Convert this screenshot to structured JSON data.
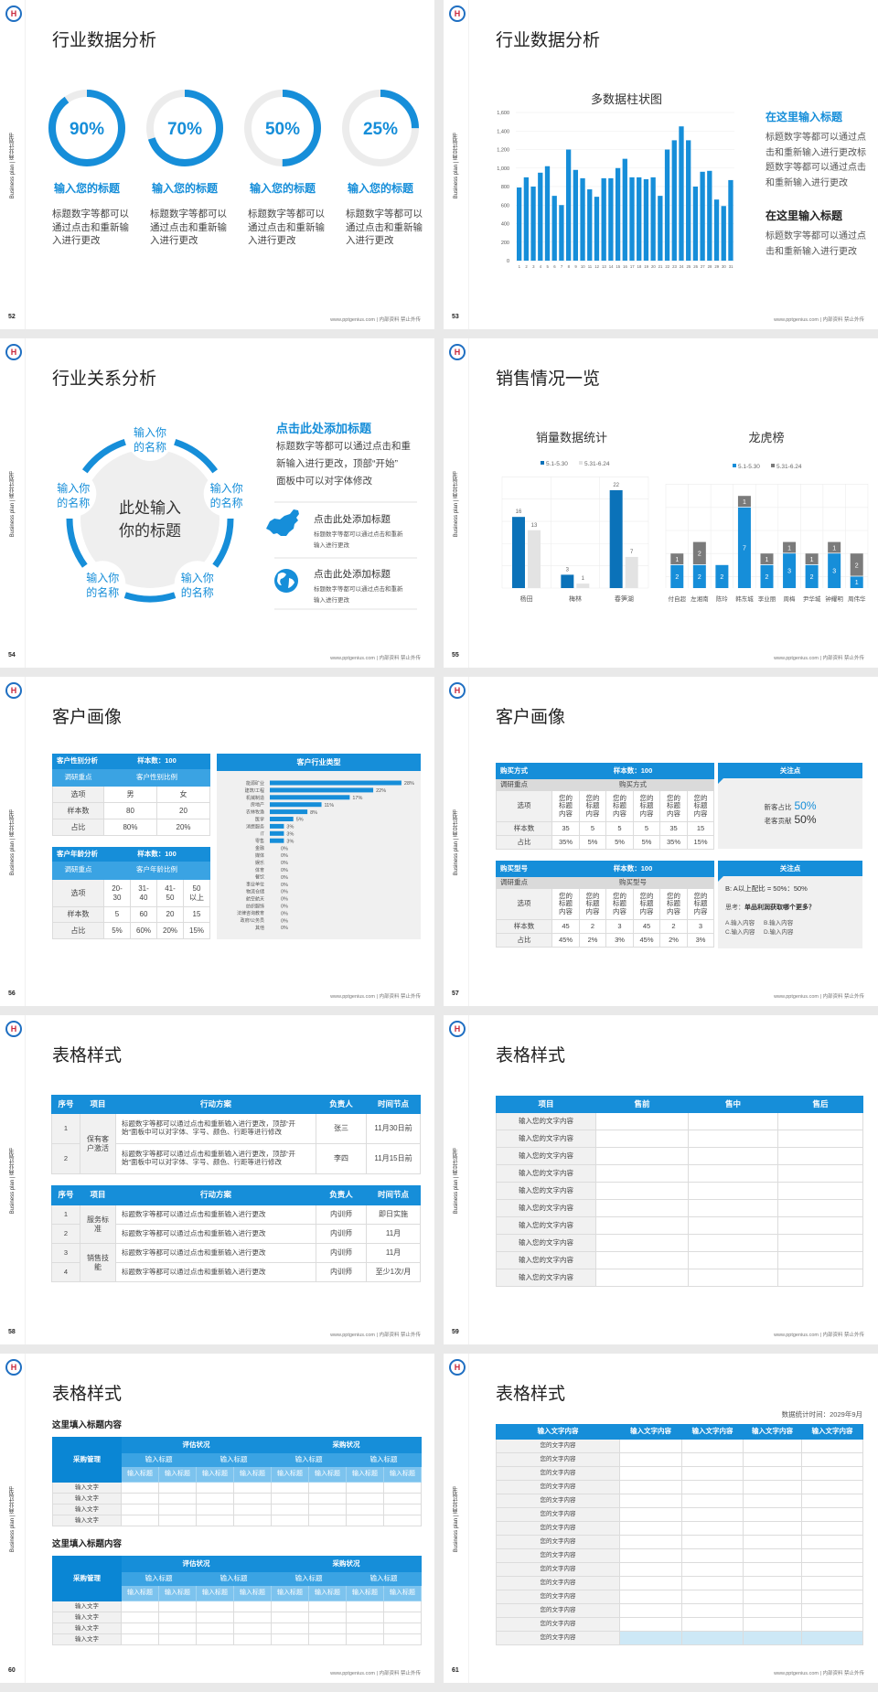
{
  "common": {
    "side_text": "Business plan | 商业计划书",
    "footer": "www.pptgenius.com | 内部资料 禁止外传",
    "logo_letter": "H",
    "colors": {
      "primary": "#168ed9",
      "dark_blue": "#0b72b9",
      "gray_bar": "#7b7b7b",
      "light_gray": "#e3e3e3",
      "highlight": "#cde8f6"
    }
  },
  "slides": [
    {
      "page": "52",
      "title": "行业数据分析",
      "rings": [
        {
          "value": 90,
          "label": "90%",
          "heading": "输入您的标题",
          "desc": [
            "标题数字等都可以",
            "通过点击和重新输",
            "入进行更改"
          ]
        },
        {
          "value": 70,
          "label": "70%",
          "heading": "输入您的标题",
          "desc": [
            "标题数字等都可以",
            "通过点击和重新输",
            "入进行更改"
          ]
        },
        {
          "value": 50,
          "label": "50%",
          "heading": "输入您的标题",
          "desc": [
            "标题数字等都可以",
            "通过点击和重新输",
            "入进行更改"
          ]
        },
        {
          "value": 25,
          "label": "25%",
          "heading": "输入您的标题",
          "desc": [
            "标题数字等都可以",
            "通过点击和重新输",
            "入进行更改"
          ]
        }
      ]
    },
    {
      "page": "53",
      "title": "行业数据分析",
      "blocks": [
        {
          "heading": "在这里输入标题",
          "lines": [
            "标题数字等都可以通过点",
            "击和重新输入进行更改标",
            "题数字等都可以通过点击",
            "和重新输入进行更改"
          ]
        },
        {
          "heading": "在这里输入标题",
          "lines": [
            "标题数字等都可以通过点",
            "击和重新输入进行更改"
          ]
        }
      ]
    },
    {
      "page": "54",
      "title": "行业关系分析",
      "center": [
        "此处输入",
        "你的标题"
      ],
      "nodes": [
        {
          "lines": [
            "输入你",
            "的名称"
          ]
        },
        {
          "lines": [
            "输入你",
            "的名称"
          ]
        },
        {
          "lines": [
            "输入你",
            "的名称"
          ]
        },
        {
          "lines": [
            "输入你",
            "的名称"
          ]
        },
        {
          "lines": [
            "输入你",
            "的名称"
          ]
        }
      ],
      "heading": "点击此处添加标题",
      "lines": [
        "标题数字等都可以通过点击和重",
        "新输入进行更改，顶部“开始”",
        "面板中可以对字体修改"
      ],
      "items": [
        {
          "icon": "china-map-icon",
          "title": "点击此处添加标题",
          "lines": [
            "标题数字等都可以通过点击和重新",
            "输入进行更改"
          ]
        },
        {
          "icon": "globe-icon",
          "title": "点击此处添加标题",
          "lines": [
            "标题数字等都可以通过点击和重新",
            "输入进行更改"
          ]
        }
      ]
    },
    {
      "page": "55",
      "title": "销售情况一览"
    },
    {
      "page": "56",
      "title": "客户画像",
      "t1": {
        "title": "客户性别分析",
        "sample": "样本数：100",
        "focus_label": "调研重点",
        "focus": "客户性别比例",
        "rows": [
          [
            "选项",
            "男",
            "女"
          ],
          [
            "样本数",
            "80",
            "20"
          ],
          [
            "占比",
            "80%",
            "20%"
          ]
        ]
      },
      "t2": {
        "title": "客户年龄分析",
        "sample": "样本数：100",
        "focus_label": "调研重点",
        "focus": "客户年龄比例",
        "rows": [
          [
            "选项",
            "20-30",
            "31-40",
            "41-50",
            "50以上"
          ],
          [
            "样本数",
            "5",
            "60",
            "20",
            "15"
          ],
          [
            "占比",
            "5%",
            "60%",
            "20%",
            "15%"
          ]
        ]
      }
    },
    {
      "page": "57",
      "title": "客户画像",
      "t1": {
        "title": "购买方式",
        "sample": "样本数：100",
        "focus_label": "调研重点",
        "focus": "购买方式",
        "rows": [
          [
            "选项",
            "您的标题内容",
            "您的标题内容",
            "您的标题内容",
            "您的标题内容",
            "您的标题内容",
            "您的标题内容"
          ],
          [
            "样本数",
            "35",
            "5",
            "5",
            "5",
            "35",
            "15"
          ],
          [
            "占比",
            "35%",
            "5%",
            "5%",
            "5%",
            "35%",
            "15%"
          ]
        ]
      },
      "p1": {
        "title": "关注点",
        "lines": [
          {
            "label": "新客占比",
            "value": "50%"
          },
          {
            "label": "老客贡献",
            "value": "50%"
          }
        ]
      },
      "t2": {
        "title": "购买型号",
        "sample": "样本数：100",
        "focus_label": "调研重点",
        "focus": "购买型号",
        "rows": [
          [
            "选项",
            "您的标题内容",
            "您的标题内容",
            "您的标题内容",
            "您的标题内容",
            "您的标题内容",
            "您的标题内容"
          ],
          [
            "样本数",
            "45",
            "2",
            "3",
            "45",
            "2",
            "3"
          ],
          [
            "占比",
            "45%",
            "2%",
            "3%",
            "45%",
            "2%",
            "3%"
          ]
        ]
      },
      "p2": {
        "title": "关注点",
        "ratio": "B: A以上配比 = 50%：50%",
        "think_label": "思考：",
        "think": "单品利润获取哪个更多？",
        "options": [
          "A.输入内容",
          "B.输入内容",
          "C.输入内容",
          "D.输入内容"
        ]
      }
    },
    {
      "page": "58",
      "title": "表格样式",
      "t1": {
        "headers": [
          "序号",
          "项目",
          "行动方案",
          "负责人",
          "时间节点"
        ],
        "groups": [
          {
            "project": "保有客户激活",
            "rows": [
              [
                "1",
                "标题数字等都可以通过点击和重新输入进行更改，顶部“开始”面板中可以对字体、字号、颜色、行距等进行修改",
                "张三",
                "11月30日前"
              ],
              [
                "2",
                "标题数字等都可以通过点击和重新输入进行更改，顶部“开始”面板中可以对字体、字号、颜色、行距等进行修改",
                "李四",
                "11月15日前"
              ]
            ]
          }
        ]
      },
      "t2": {
        "headers": [
          "序号",
          "项目",
          "行动方案",
          "负责人",
          "时间节点"
        ],
        "groups": [
          {
            "project": "服务标准",
            "rows": [
              [
                "1",
                "标题数字等都可以通过点击和重新输入进行更改",
                "内训师",
                "即日实施"
              ],
              [
                "2",
                "标题数字等都可以通过点击和重新输入进行更改",
                "内训师",
                "11月"
              ]
            ]
          },
          {
            "project": "销售技能",
            "rows": [
              [
                "3",
                "标题数字等都可以通过点击和重新输入进行更改",
                "内训师",
                "11月"
              ],
              [
                "4",
                "标题数字等都可以通过点击和重新输入进行更改",
                "内训师",
                "至少1次/月"
              ]
            ]
          }
        ]
      }
    },
    {
      "page": "59",
      "title": "表格样式",
      "headers": [
        "项目",
        "售前",
        "售中",
        "售后"
      ],
      "rows": [
        "输入您的文字内容",
        "输入您的文字内容",
        "输入您的文字内容",
        "输入您的文字内容",
        "输入您的文字内容",
        "输入您的文字内容",
        "输入您的文字内容",
        "输入您的文字内容",
        "输入您的文字内容",
        "输入您的文字内容"
      ]
    },
    {
      "page": "60",
      "title": "表格样式",
      "blocks": [
        {
          "heading": "这里填入标题内容",
          "corner": "采购管理",
          "groups": [
            "评估状况",
            "采购状况"
          ],
          "subgroups": [
            "输入标题",
            "输入标题",
            "输入标题",
            "输入标题"
          ],
          "subheaders": [
            "输入标题",
            "输入标题",
            "输入标题",
            "输入标题",
            "输入标题",
            "输入标题",
            "输入标题",
            "输入标题"
          ],
          "rows": [
            "输入文字",
            "输入文字",
            "输入文字",
            "输入文字"
          ]
        },
        {
          "heading": "这里填入标题内容",
          "corner": "采购管理",
          "groups": [
            "评估状况",
            "采购状况"
          ],
          "subgroups": [
            "输入标题",
            "输入标题",
            "输入标题",
            "输入标题"
          ],
          "subheaders": [
            "输入标题",
            "输入标题",
            "输入标题",
            "输入标题",
            "输入标题",
            "输入标题",
            "输入标题",
            "输入标题"
          ],
          "rows": [
            "输入文字",
            "输入文字",
            "输入文字",
            "输入文字"
          ]
        }
      ]
    },
    {
      "page": "61",
      "title": "表格样式",
      "date": "数据统计时间：2029年9月",
      "headers": [
        "输入文字内容",
        "输入文字内容",
        "输入文字内容",
        "输入文字内容",
        "输入文字内容"
      ],
      "rows": [
        "您的文字内容",
        "您的文字内容",
        "您的文字内容",
        "您的文字内容",
        "您的文字内容",
        "您的文字内容",
        "您的文字内容",
        "您的文字内容",
        "您的文字内容",
        "您的文字内容",
        "您的文字内容",
        "您的文字内容",
        "您的文字内容",
        "您的文字内容",
        "您的文字内容"
      ]
    }
  ],
  "chart_data": [
    {
      "type": "bar",
      "title": "多数据柱状图",
      "categories": [
        "1",
        "2",
        "3",
        "4",
        "5",
        "6",
        "7",
        "8",
        "9",
        "10",
        "11",
        "12",
        "13",
        "14",
        "15",
        "16",
        "17",
        "18",
        "19",
        "20",
        "21",
        "22",
        "23",
        "24",
        "25",
        "26",
        "27",
        "28",
        "29",
        "30",
        "31"
      ],
      "values": [
        790,
        900,
        800,
        950,
        1020,
        700,
        600,
        1200,
        980,
        890,
        770,
        690,
        890,
        890,
        1000,
        1100,
        900,
        900,
        880,
        900,
        700,
        1200,
        1300,
        1450,
        1300,
        800,
        960,
        970,
        660,
        590,
        870
      ],
      "ylim": [
        0,
        1600
      ],
      "yticks": [
        "0",
        "200",
        "400",
        "600",
        "800",
        "1,000",
        "1,200",
        "1,400",
        "1,600"
      ],
      "grid": true,
      "color": "#168ed9"
    },
    {
      "type": "bar",
      "title": "销量数据统计",
      "categories": [
        "杨田",
        "梅林",
        "春笋湖"
      ],
      "series": [
        {
          "name": "5.1-5.30",
          "values": [
            16,
            3,
            22
          ]
        },
        {
          "name": "5.31-6.24",
          "values": [
            13,
            1,
            7
          ]
        }
      ],
      "colors": [
        "#0b72b9",
        "#e3e3e3"
      ],
      "legend": "top",
      "grid": true
    },
    {
      "type": "bar",
      "stacked": true,
      "title": "龙虎榜",
      "categories": [
        "付自超",
        "左湘南",
        "陈玲",
        "韩东城",
        "李业丽",
        "周梅",
        "尹华城",
        "钟耀明",
        "周伟华"
      ],
      "series": [
        {
          "name": "5.1-5.30",
          "values": [
            2,
            2,
            2,
            7,
            2,
            3,
            2,
            3,
            1
          ]
        },
        {
          "name": "5.31-6.24",
          "values": [
            1,
            2,
            0,
            1,
            1,
            1,
            1,
            1,
            2
          ]
        }
      ],
      "colors": [
        "#168ed9",
        "#7b7b7b"
      ],
      "legend": "top",
      "grid": true
    },
    {
      "type": "bar",
      "orientation": "horizontal",
      "title": "客户行业类型",
      "categories": [
        "能源矿业",
        "建筑/工程",
        "机械制造",
        "房地产",
        "农林牧渔",
        "医学",
        "消费服务",
        "IT",
        "零售",
        "金融",
        "媒体",
        "娱乐",
        "体育",
        "餐饮",
        "事业单位",
        "物流仓储",
        "航空航天",
        "纺织服饰",
        "法律咨询教育",
        "政府/公务员",
        "其他"
      ],
      "values": [
        28,
        22,
        17,
        11,
        8,
        5,
        3,
        3,
        3,
        0,
        0,
        0,
        0,
        0,
        0,
        0,
        0,
        0,
        0,
        0,
        0
      ],
      "labels": [
        "28%",
        "22%",
        "17%",
        "11%",
        "8%",
        "5%",
        "3%",
        "3%",
        "3%",
        "0%",
        "0%",
        "0%",
        "0%",
        "0%",
        "0%",
        "0%",
        "0%",
        "0%",
        "0%",
        "0%",
        "0%"
      ],
      "color": "#168ed9"
    }
  ]
}
